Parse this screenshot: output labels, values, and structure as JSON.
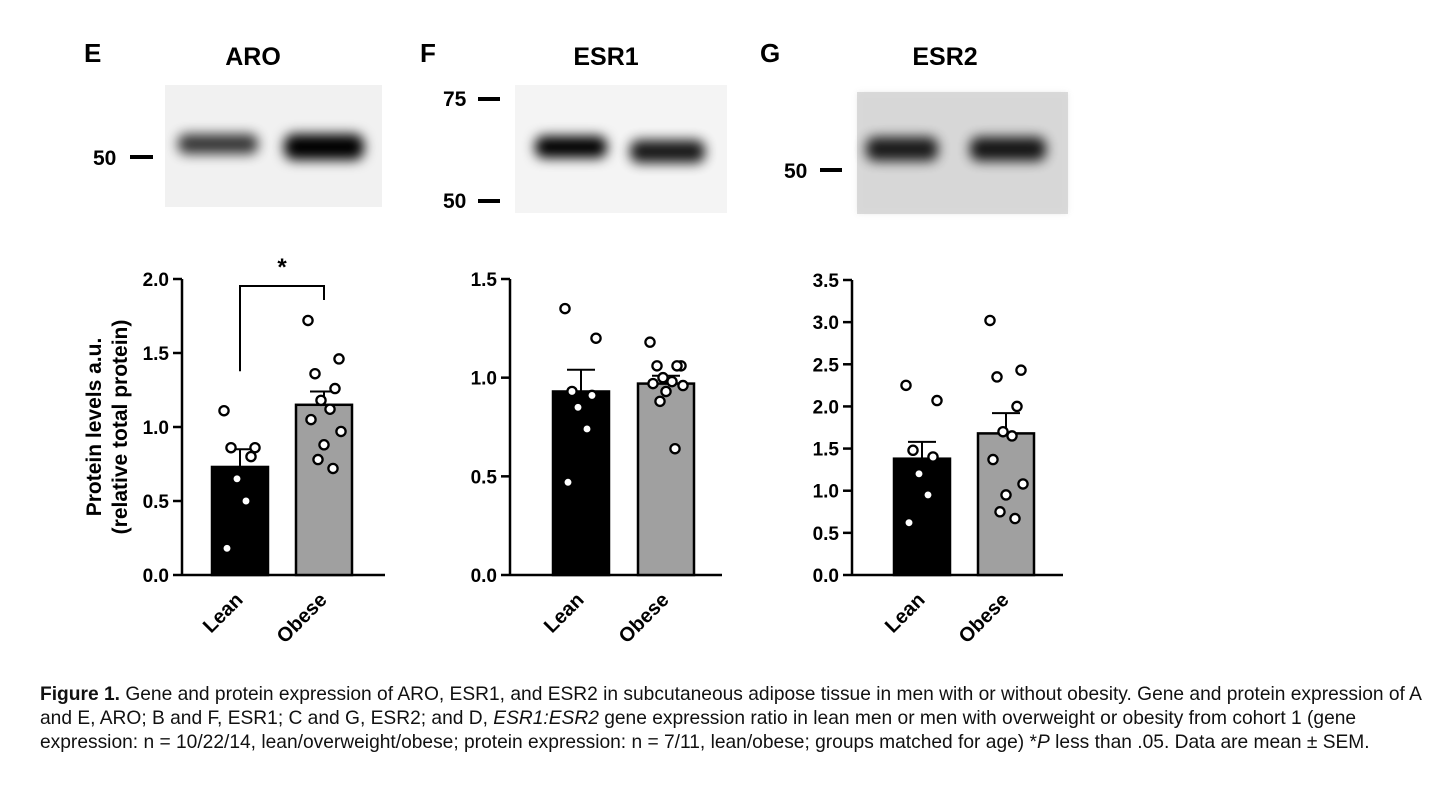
{
  "figure": {
    "panels": [
      {
        "letter": "E",
        "title": "ARO",
        "blot_markers": [
          "50"
        ]
      },
      {
        "letter": "F",
        "title": "ESR1",
        "blot_markers": [
          "75",
          "50"
        ]
      },
      {
        "letter": "G",
        "title": "ESR2",
        "blot_markers": [
          "50"
        ]
      }
    ],
    "caption": {
      "label": "Figure 1.",
      "part1": "Gene and protein expression of ARO, ESR1, and ESR2 in subcutaneous adipose tissue in men with or without obesity. Gene and protein expression of A and E, ARO; B and F, ESR1; C and G, ESR2; and D,",
      "gene_ratio": "ESR1:ESR2",
      "part2": "gene expression ratio in lean men or men with overweight or obesity from cohort 1 (gene expression: n = 10/22/14, lean/overweight/obese; protein expression: n = 7/11, lean/obese; groups matched for age) *",
      "p_symbol": "P",
      "part3": "less than .05. Data are mean ± SEM."
    }
  },
  "chart_data": [
    {
      "type": "bar",
      "panel": "E",
      "title": "ARO",
      "ylabel": "Protein levels a.u.",
      "ylabel2": "(relative total protein)",
      "categories": [
        "Lean",
        "Obese"
      ],
      "values": [
        0.73,
        1.15
      ],
      "sem": [
        0.12,
        0.09
      ],
      "ylim": [
        0,
        2.0
      ],
      "yticks": [
        "0.0",
        "0.5",
        "1.0",
        "1.5",
        "2.0"
      ],
      "points": [
        [
          1.11,
          0.86,
          0.86,
          0.8,
          0.65,
          0.5,
          0.18
        ],
        [
          1.72,
          1.46,
          1.36,
          1.26,
          1.18,
          1.12,
          1.05,
          0.97,
          0.88,
          0.78,
          0.72
        ]
      ],
      "bar_colors": [
        "#000000",
        "#a0a0a0"
      ],
      "significance": "*"
    },
    {
      "type": "bar",
      "panel": "F",
      "title": "ESR1",
      "categories": [
        "Lean",
        "Obese"
      ],
      "values": [
        0.93,
        0.97
      ],
      "sem": [
        0.11,
        0.04
      ],
      "ylim": [
        0,
        1.5
      ],
      "yticks": [
        "0.0",
        "0.5",
        "1.0",
        "1.5"
      ],
      "points": [
        [
          1.35,
          1.2,
          0.93,
          0.91,
          0.85,
          0.74,
          0.47
        ],
        [
          1.18,
          1.06,
          1.06,
          1.06,
          1.0,
          0.98,
          0.97,
          0.96,
          0.93,
          0.88,
          0.64
        ]
      ],
      "bar_colors": [
        "#000000",
        "#a0a0a0"
      ]
    },
    {
      "type": "bar",
      "panel": "G",
      "title": "ESR2",
      "categories": [
        "Lean",
        "Obese"
      ],
      "values": [
        1.38,
        1.68
      ],
      "sem": [
        0.2,
        0.24
      ],
      "ylim": [
        0,
        3.5
      ],
      "yticks": [
        "0.0",
        "0.5",
        "1.0",
        "1.5",
        "2.0",
        "2.5",
        "3.0",
        "3.5"
      ],
      "points": [
        [
          2.25,
          2.07,
          1.48,
          1.4,
          1.2,
          0.95,
          0.62
        ],
        [
          3.02,
          2.43,
          2.35,
          2.0,
          1.7,
          1.65,
          1.37,
          1.08,
          0.95,
          0.75,
          0.67
        ]
      ],
      "bar_colors": [
        "#000000",
        "#a0a0a0"
      ]
    }
  ]
}
